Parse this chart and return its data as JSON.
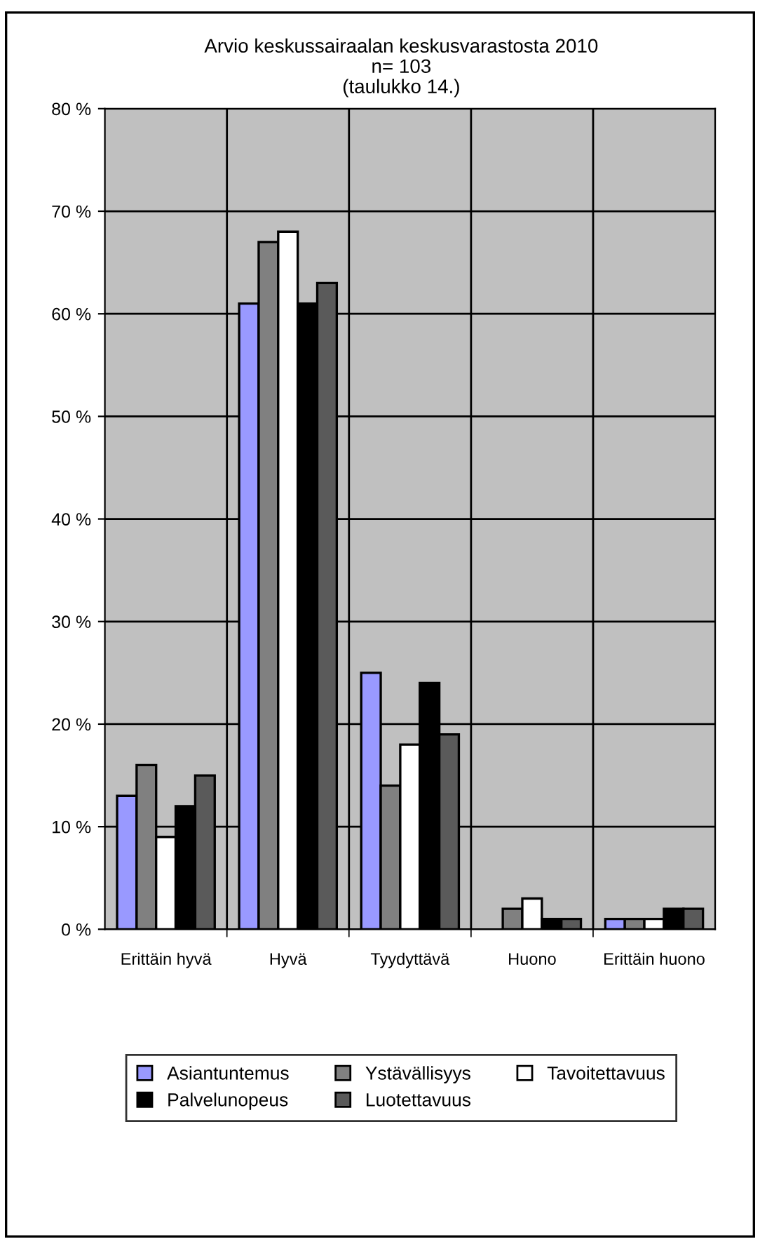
{
  "chart_data": {
    "type": "bar",
    "title": "Arvio keskussairaalan keskusvarastosta 2010",
    "subtitle": "n= 103\n(taulukko 14.)",
    "categories": [
      "Erittäin hyvä",
      "Hyvä",
      "Tyydyttävä",
      "Huono",
      "Erittäin huono"
    ],
    "series": [
      {
        "name": "Asiantuntemus",
        "color": "#9999ff",
        "values": [
          13,
          61,
          25,
          0,
          1
        ]
      },
      {
        "name": "Ystävällisyys",
        "color": "#808080",
        "values": [
          16,
          67,
          14,
          2,
          1
        ]
      },
      {
        "name": "Tavoitettavuus",
        "color": "#ffffff",
        "values": [
          9,
          68,
          18,
          3,
          1
        ]
      },
      {
        "name": "Palvelunopeus",
        "color": "#000000",
        "values": [
          12,
          61,
          24,
          1,
          2
        ]
      },
      {
        "name": "Luotettavuus",
        "color": "#5a5a5a",
        "values": [
          15,
          63,
          19,
          1,
          2
        ]
      }
    ],
    "ylim": [
      0,
      80
    ],
    "yticks": [
      {
        "value": 0,
        "label": "0 %"
      },
      {
        "value": 10,
        "label": "10 %"
      },
      {
        "value": 20,
        "label": "20 %"
      },
      {
        "value": 30,
        "label": "30 %"
      },
      {
        "value": 40,
        "label": "40 %"
      },
      {
        "value": 50,
        "label": "50 %"
      },
      {
        "value": 60,
        "label": "60 %"
      },
      {
        "value": 70,
        "label": "70 %"
      },
      {
        "value": 80,
        "label": "80 %"
      }
    ],
    "grid": true,
    "legend": "bottom"
  }
}
